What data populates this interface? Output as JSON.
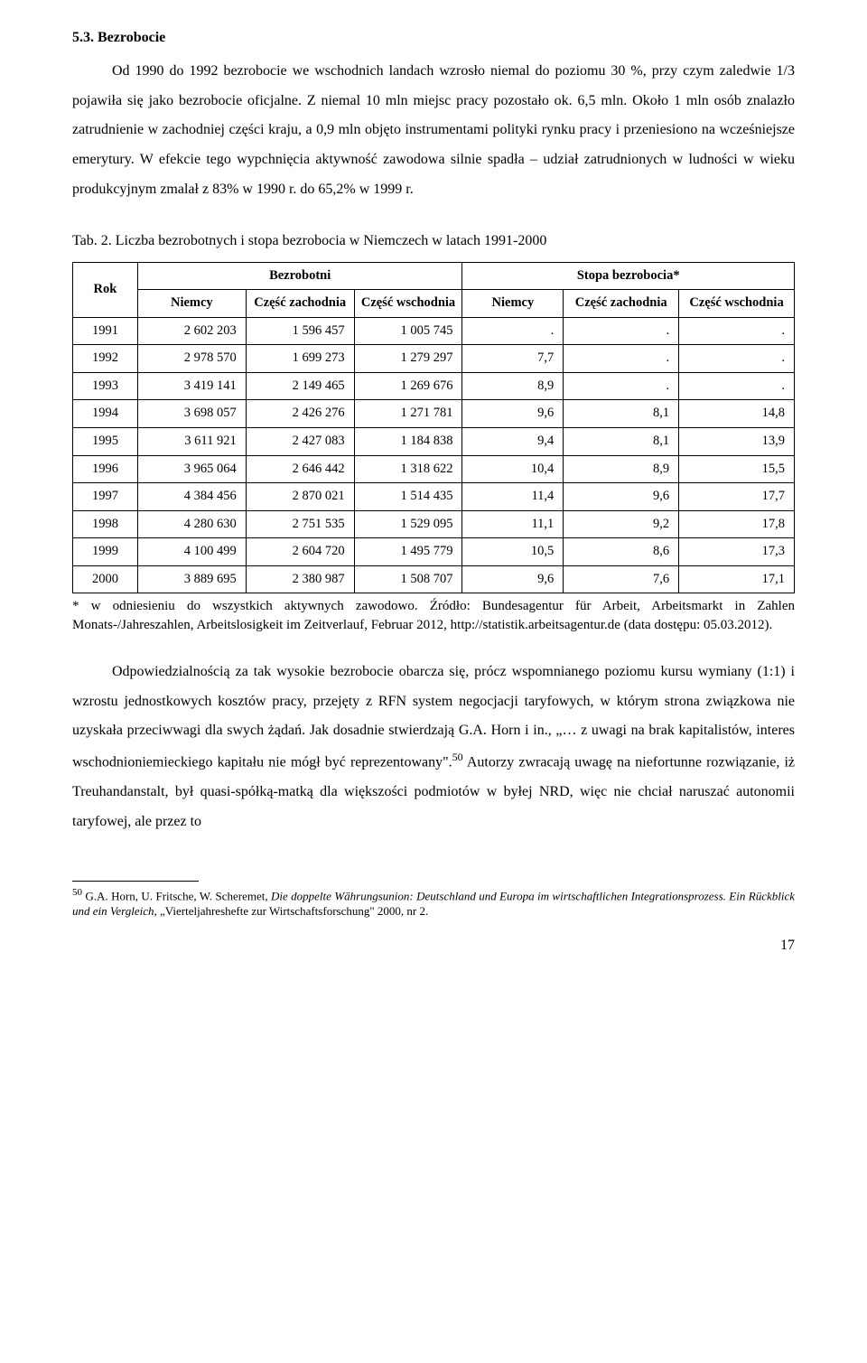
{
  "heading": "5.3. Bezrobocie",
  "para1": "Od 1990 do 1992 bezrobocie we wschodnich landach wzrosło niemal do poziomu 30 %, przy czym zaledwie 1/3 pojawiła się jako bezrobocie oficjalne. Z niemal 10 mln miejsc pracy pozostało ok. 6,5 mln. Około 1 mln osób znalazło zatrudnienie w zachodniej części kraju, a 0,9 mln objęto instrumentami polityki rynku pracy i przeniesiono na wcześniejsze emerytury. W efekcie tego wypchnięcia aktywność zawodowa silnie spadła – udział zatrudnionych w ludności w wieku produkcyjnym zmalał z 83% w 1990 r. do 65,2% w 1999 r.",
  "table_caption": "Tab. 2. Liczba bezrobotnych i stopa bezrobocia w Niemczech w latach 1991-2000",
  "table": {
    "group_headers": {
      "group1": "Bezrobotni",
      "group2": "Stopa bezrobocia*"
    },
    "main_header": {
      "rok": "Rok",
      "cols": [
        "Niemcy",
        "Część zachodnia",
        "Część wschodnia",
        "Niemcy",
        "Część zachodnia",
        "Część wschodnia"
      ]
    },
    "rows": [
      {
        "rok": "1991",
        "c": [
          "2 602 203",
          "1 596 457",
          "1 005 745",
          ".",
          ".",
          "."
        ]
      },
      {
        "rok": "1992",
        "c": [
          "2 978 570",
          "1 699 273",
          "1 279 297",
          "7,7",
          ".",
          "."
        ]
      },
      {
        "rok": "1993",
        "c": [
          "3 419 141",
          "2 149 465",
          "1 269 676",
          "8,9",
          ".",
          "."
        ]
      },
      {
        "rok": "1994",
        "c": [
          "3 698 057",
          "2 426 276",
          "1 271 781",
          "9,6",
          "8,1",
          "14,8"
        ]
      },
      {
        "rok": "1995",
        "c": [
          "3 611 921",
          "2 427 083",
          "1 184 838",
          "9,4",
          "8,1",
          "13,9"
        ]
      },
      {
        "rok": "1996",
        "c": [
          "3 965 064",
          "2 646 442",
          "1 318 622",
          "10,4",
          "8,9",
          "15,5"
        ]
      },
      {
        "rok": "1997",
        "c": [
          "4 384 456",
          "2 870 021",
          "1 514 435",
          "11,4",
          "9,6",
          "17,7"
        ]
      },
      {
        "rok": "1998",
        "c": [
          "4 280 630",
          "2 751 535",
          "1 529 095",
          "11,1",
          "9,2",
          "17,8"
        ]
      },
      {
        "rok": "1999",
        "c": [
          "4 100 499",
          "2 604 720",
          "1 495 779",
          "10,5",
          "8,6",
          "17,3"
        ]
      },
      {
        "rok": "2000",
        "c": [
          "3 889 695",
          "2 380 987",
          "1 508 707",
          "9,6",
          "7,6",
          "17,1"
        ]
      }
    ]
  },
  "table_footnote": "* w odniesieniu do wszystkich aktywnych zawodowo. Źródło: Bundesagentur für Arbeit, Arbeitsmarkt in Zahlen Monats-/Jahreszahlen, Arbeitslosigkeit im Zeitverlauf, Februar 2012, http://statistik.arbeitsagentur.de (data dostępu: 05.03.2012).",
  "para2_pre": "Odpowiedzialnością za tak wysokie bezrobocie obarcza się, prócz wspomnianego poziomu kursu wymiany (1:1) i wzrostu jednostkowych kosztów pracy, przejęty z RFN system negocjacji taryfowych, w którym strona związkowa nie uzyskała przeciwwagi dla swych żądań. Jak dosadnie stwierdzają G.A. Horn i in., „… z uwagi na brak kapitalistów, interes wschodnioniemieckiego kapitału nie mógł być reprezentowany\".",
  "para2_sup": "50",
  "para2_post": " Autorzy zwracają uwagę na niefortunne rozwiązanie, iż Treuhandanstalt, był quasi-spółką-matką dla większości podmiotów w byłej NRD, więc nie chciał naruszać autonomii taryfowej, ale przez to",
  "footnote": {
    "marker": "50",
    "text_plain_pre": " G.A. Horn, U. Fritsche, W. Scheremet, ",
    "text_italic1": "Die doppelte Währungsunion: Deutschland und Europa im wirtschaftlichen Integrationsprozess. Ein Rückblick und ein Vergleich",
    "text_plain_mid": ", „Vierteljahreshefte zur Wirtschaftsforschung\" 2000, nr 2."
  },
  "page_number": "17"
}
